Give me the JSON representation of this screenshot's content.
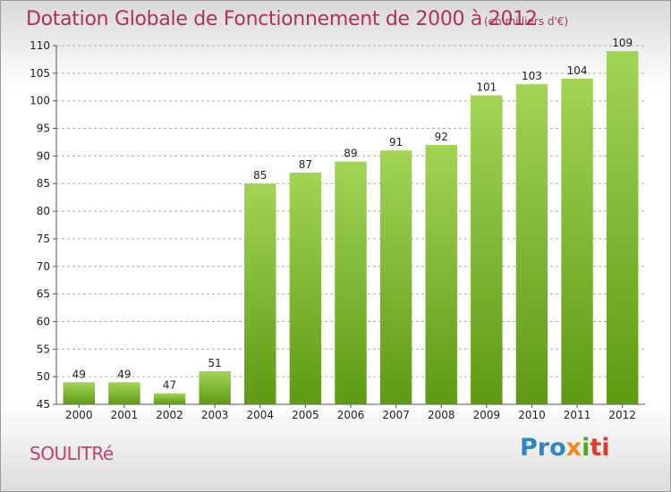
{
  "header": {
    "title": "Dotation Globale de Fonctionnement de 2000 à 2012",
    "unit": "(en milliers d'€)"
  },
  "footer": {
    "commune": "SOULITRé",
    "brand": {
      "p1": "Pro",
      "p2": "x",
      "p3": "i",
      "p4": "ti"
    }
  },
  "colors": {
    "bar_light": "#a3d455",
    "bar_dark": "#5e9a14",
    "title": "#b03060",
    "grid": "#b0b0b0",
    "axis_text": "#222222"
  },
  "chart_data": {
    "type": "bar",
    "title": "Dotation Globale de Fonctionnement de 2000 à 2012",
    "ylabel": "(en milliers d'€)",
    "categories": [
      "2000",
      "2001",
      "2002",
      "2003",
      "2004",
      "2005",
      "2006",
      "2007",
      "2008",
      "2009",
      "2010",
      "2011",
      "2012"
    ],
    "values": [
      49,
      49,
      47,
      51,
      85,
      87,
      89,
      91,
      92,
      101,
      103,
      104,
      109
    ],
    "ylim": [
      45,
      110
    ],
    "yticks": [
      45,
      50,
      55,
      60,
      65,
      70,
      75,
      80,
      85,
      90,
      95,
      100,
      105,
      110
    ],
    "grid": true
  }
}
